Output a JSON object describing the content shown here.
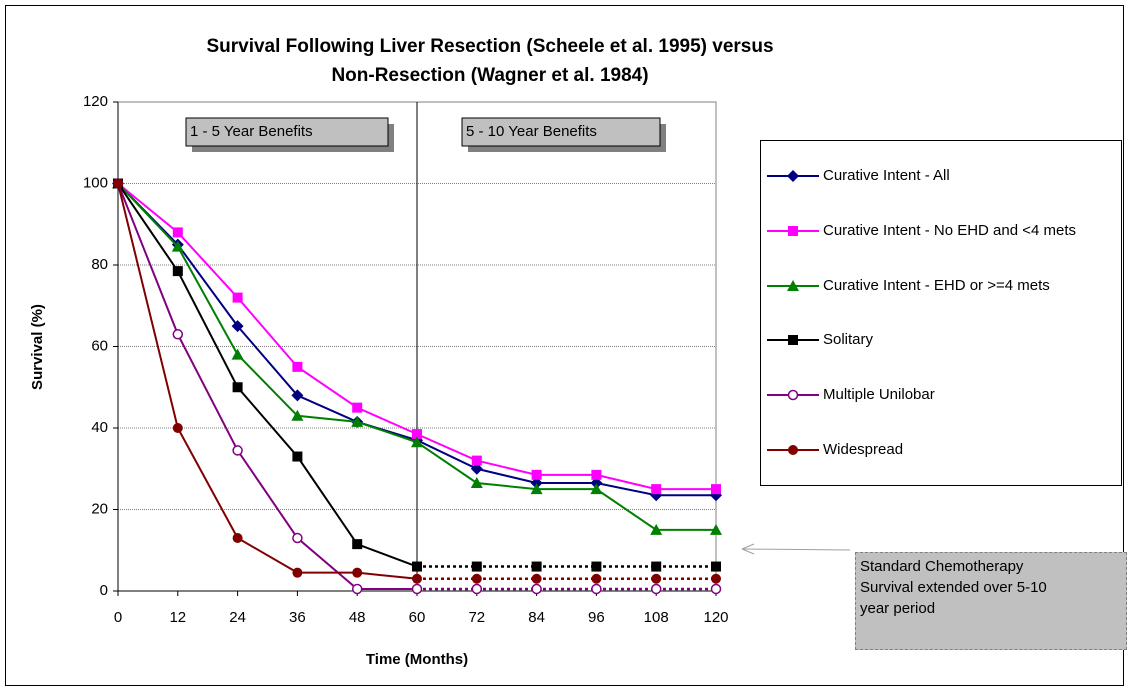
{
  "chart_data": {
    "type": "line",
    "title": [
      "Survival Following Liver Resection (Scheele et al. 1995) versus",
      "Non-Resection (Wagner et al. 1984)"
    ],
    "x_label": "Time (Months)",
    "y_label": "Survival (%)",
    "x": [
      0,
      12,
      24,
      36,
      48,
      60,
      72,
      84,
      96,
      108,
      120
    ],
    "xlim": [
      0,
      120
    ],
    "xticks": [
      0,
      12,
      24,
      36,
      48,
      60,
      72,
      84,
      96,
      108,
      120
    ],
    "ylim": [
      0,
      120
    ],
    "yticks": [
      0,
      20,
      40,
      60,
      80,
      100,
      120
    ],
    "grid": true,
    "series": [
      {
        "name": "Curative Intent - All",
        "color": "#000080",
        "marker": "diamond",
        "values": [
          100,
          85,
          65,
          48,
          41.5,
          37,
          30,
          26.5,
          26.5,
          23.5,
          23.5
        ]
      },
      {
        "name": "Curative Intent - No EHD and <4 mets",
        "color": "#ff00ff",
        "marker": "square",
        "values": [
          100,
          88,
          72,
          55,
          45,
          38.5,
          32,
          28.5,
          28.5,
          25,
          25
        ]
      },
      {
        "name": "Curative Intent - EHD or >=4 mets",
        "color": "#008000",
        "marker": "triangle",
        "values": [
          100,
          84.5,
          58,
          43,
          41.5,
          36.5,
          26.5,
          25,
          25,
          15,
          15
        ]
      },
      {
        "name": "Solitary",
        "color": "#000000",
        "marker": "square",
        "dotted_from": 60,
        "values": [
          100,
          78.5,
          50,
          33,
          11.5,
          6,
          6,
          6,
          6,
          6,
          6
        ]
      },
      {
        "name": "Multiple Unilobar",
        "color": "#800080",
        "marker": "open-circle",
        "dotted_from": 60,
        "values": [
          100,
          63,
          34.5,
          13,
          0.5,
          0.5,
          0.5,
          0.5,
          0.5,
          0.5,
          0.5
        ]
      },
      {
        "name": "Widespread",
        "color": "#800000",
        "marker": "circle",
        "dotted_from": 60,
        "values": [
          100,
          40,
          13,
          4.5,
          4.5,
          3,
          3,
          3,
          3,
          3,
          3
        ]
      }
    ],
    "divider_x": 60,
    "annotations": [
      "1 - 5 Year Benefits",
      "5 - 10 Year Benefits",
      "Standard Chemotherapy Survival extended over 5-10 year period"
    ],
    "legend": "right"
  }
}
